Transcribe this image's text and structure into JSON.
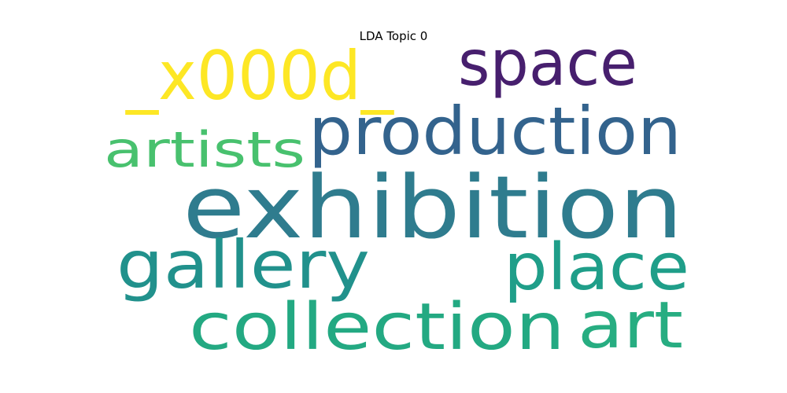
{
  "chart_data": {
    "type": "wordcloud",
    "title": "LDA Topic 0",
    "words": [
      {
        "text": "exhibition",
        "color": "#2f7c8e"
      },
      {
        "text": "production",
        "color": "#33638d"
      },
      {
        "text": "space",
        "color": "#471f6e"
      },
      {
        "text": "_x000d_",
        "color": "#fde725"
      },
      {
        "text": "artists",
        "color": "#48c16e"
      },
      {
        "text": "gallery",
        "color": "#21918c"
      },
      {
        "text": "place",
        "color": "#1f9e89"
      },
      {
        "text": "collection",
        "color": "#23a982"
      },
      {
        "text": "art",
        "color": "#27ad81"
      }
    ]
  }
}
